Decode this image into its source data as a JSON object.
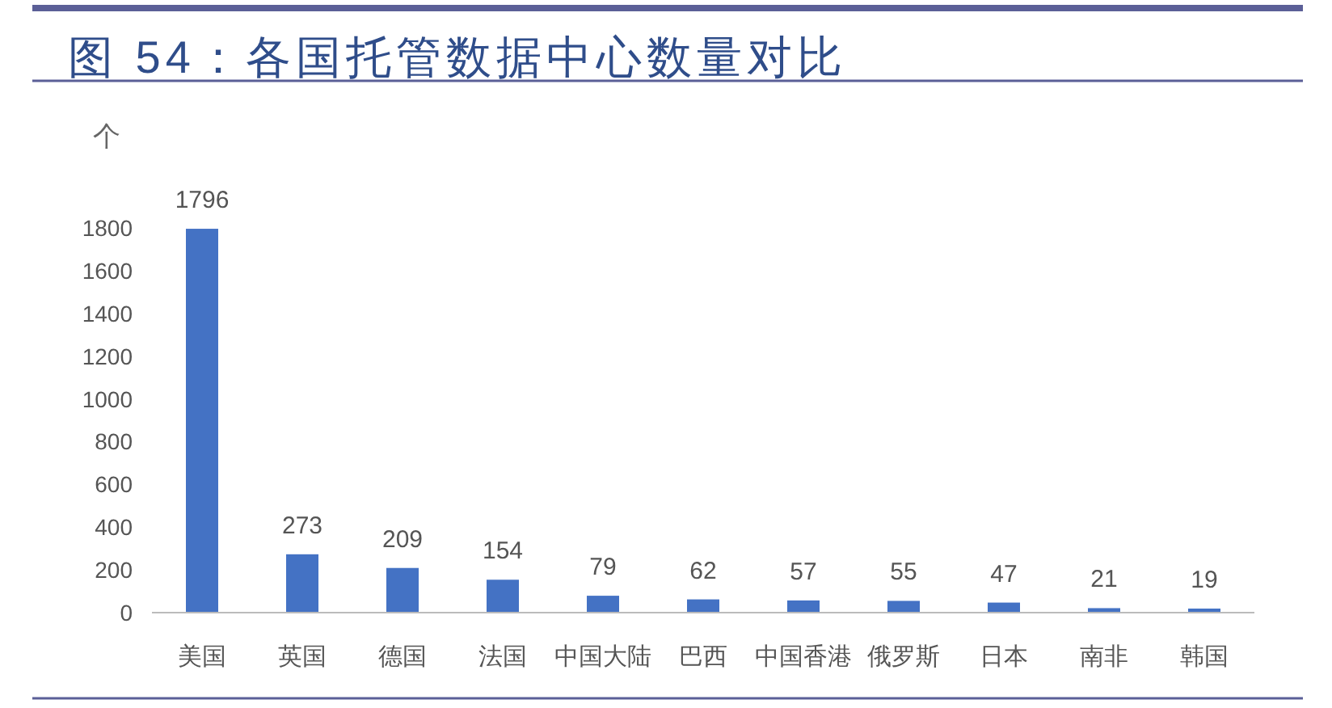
{
  "chart_data": {
    "type": "bar",
    "title": "图 54：各国托管数据中心数量对比",
    "ylabel": "个",
    "categories": [
      "美国",
      "英国",
      "德国",
      "法国",
      "中国大陆",
      "巴西",
      "中国香港",
      "俄罗斯",
      "日本",
      "南非",
      "韩国"
    ],
    "values": [
      1796,
      273,
      209,
      154,
      79,
      62,
      57,
      55,
      47,
      21,
      19
    ],
    "color": "#4472c4",
    "ylim": [
      0,
      1800
    ],
    "yticks": [
      0,
      200,
      400,
      600,
      800,
      1000,
      1200,
      1400,
      1600,
      1800
    ],
    "data_labels": true
  }
}
